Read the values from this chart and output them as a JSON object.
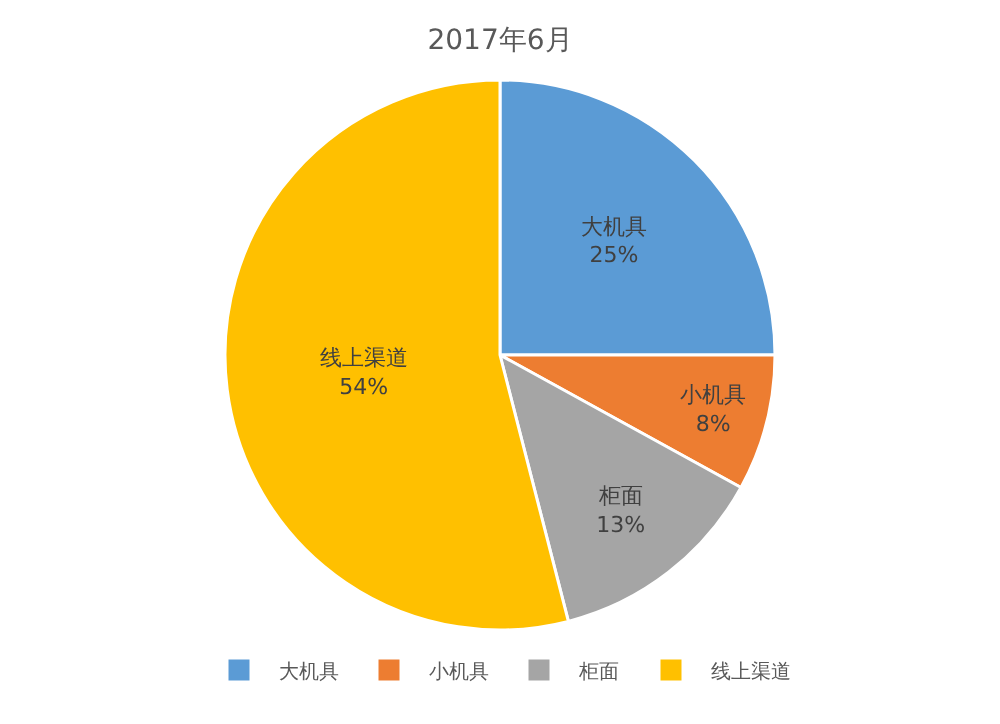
{
  "chart_data": {
    "type": "pie",
    "title": "2017年6月",
    "categories": [
      "大机具",
      "小机具",
      "柜面",
      "线上渠道"
    ],
    "values": [
      25,
      8,
      13,
      54
    ],
    "value_labels": [
      "25%",
      "8%",
      "13%",
      "54%"
    ],
    "colors": [
      "#5b9bd5",
      "#ed7d31",
      "#a5a5a5",
      "#ffc000"
    ],
    "legend": "bottom"
  }
}
